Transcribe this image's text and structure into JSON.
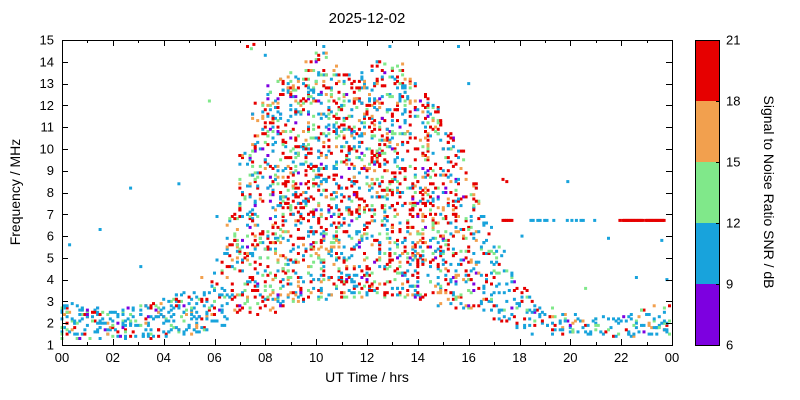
{
  "chart_data": {
    "type": "scatter",
    "title": "2025-12-02",
    "xlabel": "UT Time / hrs",
    "ylabel": "Frequency / MHz",
    "xlim": [
      0,
      24
    ],
    "ylim": [
      1,
      15
    ],
    "grid": false,
    "x_ticks": [
      {
        "v": 0,
        "l": "00"
      },
      {
        "v": 2,
        "l": "02"
      },
      {
        "v": 4,
        "l": "04"
      },
      {
        "v": 6,
        "l": "06"
      },
      {
        "v": 8,
        "l": "08"
      },
      {
        "v": 10,
        "l": "10"
      },
      {
        "v": 12,
        "l": "12"
      },
      {
        "v": 14,
        "l": "14"
      },
      {
        "v": 16,
        "l": "16"
      },
      {
        "v": 18,
        "l": "18"
      },
      {
        "v": 20,
        "l": "20"
      },
      {
        "v": 22,
        "l": "22"
      },
      {
        "v": 24,
        "l": "00"
      }
    ],
    "y_ticks": [
      1,
      2,
      3,
      4,
      5,
      6,
      7,
      8,
      9,
      10,
      11,
      12,
      13,
      14,
      15
    ],
    "colorbar": {
      "label": "Signal to Noise Ratio SNR / dB",
      "min": 6,
      "max": 21,
      "ticks": [
        6,
        9,
        12,
        15,
        18,
        21
      ],
      "bands": [
        {
          "range": [
            6,
            9
          ],
          "color": "#7d00e0"
        },
        {
          "range": [
            9,
            12
          ],
          "color": "#18a3dc"
        },
        {
          "range": [
            12,
            15
          ],
          "color": "#80e88a"
        },
        {
          "range": [
            15,
            18
          ],
          "color": "#f2a04e"
        },
        {
          "range": [
            18,
            21
          ],
          "color": "#e60000"
        }
      ]
    },
    "description": "Ionospheric sounding SNR vs UT time and frequency: low frequencies (1-3 MHz) at night, dense cloud rising to 14.5 MHz between 07 and 16 UT, collapse after 16 UT, fixed-frequency trace at 6.7 MHz in the evening.",
    "generation": {
      "seed": 7,
      "point_size": 3,
      "t_step": 0.1,
      "f_quant": 0.1,
      "day_range": [
        6.6,
        16.4
      ],
      "palette": {
        "p": "#7d00e0",
        "b": "#18a3dc",
        "g": "#80e88a",
        "o": "#f2a04e",
        "r": "#e60000"
      },
      "weights_day": [
        [
          "b",
          0.3
        ],
        [
          "g",
          0.2
        ],
        [
          "o",
          0.14
        ],
        [
          "r",
          0.31
        ],
        [
          "p",
          0.05
        ]
      ],
      "weights_night": [
        [
          "b",
          0.6
        ],
        [
          "g",
          0.16
        ],
        [
          "r",
          0.13
        ],
        [
          "o",
          0.06
        ],
        [
          "p",
          0.05
        ]
      ],
      "red_core": {
        "fmin": 6.5,
        "fmax": 11.0,
        "boost": 0.2
      },
      "envelope": [
        [
          0.0,
          1.3,
          2.9,
          26
        ],
        [
          0.5,
          1.3,
          2.8,
          24
        ],
        [
          1.0,
          1.3,
          2.7,
          22
        ],
        [
          1.5,
          1.3,
          2.6,
          20
        ],
        [
          2.0,
          1.3,
          2.6,
          20
        ],
        [
          2.5,
          1.3,
          2.8,
          21
        ],
        [
          3.0,
          1.3,
          2.9,
          22
        ],
        [
          3.5,
          1.3,
          3.0,
          23
        ],
        [
          4.0,
          1.4,
          3.2,
          26
        ],
        [
          4.5,
          1.5,
          3.4,
          28
        ],
        [
          5.0,
          1.5,
          3.5,
          28
        ],
        [
          5.5,
          1.6,
          4.2,
          26
        ],
        [
          6.0,
          1.8,
          5.2,
          32
        ],
        [
          6.5,
          2.0,
          7.0,
          48
        ],
        [
          7.0,
          2.2,
          9.8,
          75
        ],
        [
          7.5,
          2.4,
          12.2,
          95
        ],
        [
          8.0,
          2.5,
          13.0,
          115
        ],
        [
          8.5,
          2.8,
          13.3,
          125
        ],
        [
          9.0,
          3.0,
          13.6,
          132
        ],
        [
          9.5,
          3.0,
          14.0,
          134
        ],
        [
          10.0,
          3.0,
          14.5,
          136
        ],
        [
          10.5,
          3.2,
          13.9,
          130
        ],
        [
          11.0,
          3.2,
          13.4,
          126
        ],
        [
          11.5,
          3.2,
          13.6,
          126
        ],
        [
          12.0,
          3.2,
          14.0,
          130
        ],
        [
          12.5,
          3.2,
          14.2,
          131
        ],
        [
          13.0,
          3.2,
          13.9,
          130
        ],
        [
          13.5,
          3.0,
          13.3,
          122
        ],
        [
          14.0,
          3.0,
          12.6,
          112
        ],
        [
          14.5,
          2.8,
          12.0,
          100
        ],
        [
          15.0,
          2.8,
          11.0,
          86
        ],
        [
          15.5,
          2.6,
          10.0,
          70
        ],
        [
          16.0,
          2.4,
          8.6,
          56
        ],
        [
          16.5,
          2.2,
          7.0,
          42
        ],
        [
          17.0,
          2.0,
          5.6,
          30
        ],
        [
          17.5,
          1.8,
          4.6,
          23
        ],
        [
          18.0,
          1.6,
          3.6,
          18
        ],
        [
          18.5,
          1.5,
          3.0,
          15
        ],
        [
          19.0,
          1.5,
          2.8,
          14
        ],
        [
          19.5,
          1.4,
          2.6,
          12
        ],
        [
          20.0,
          1.4,
          2.5,
          12
        ],
        [
          20.5,
          1.4,
          2.4,
          10
        ],
        [
          21.0,
          1.4,
          2.4,
          10
        ],
        [
          21.5,
          1.4,
          2.4,
          10
        ],
        [
          22.0,
          1.4,
          2.5,
          12
        ],
        [
          22.5,
          1.4,
          2.6,
          14
        ],
        [
          23.0,
          1.4,
          2.8,
          16
        ],
        [
          23.5,
          1.4,
          2.9,
          18
        ]
      ],
      "outliers": [
        [
          0.3,
          5.6,
          "b"
        ],
        [
          1.5,
          6.3,
          "b"
        ],
        [
          2.7,
          8.2,
          "b"
        ],
        [
          3.1,
          4.6,
          "b"
        ],
        [
          4.6,
          8.4,
          "b"
        ],
        [
          5.8,
          12.2,
          "g"
        ],
        [
          6.1,
          6.9,
          "b"
        ],
        [
          7.3,
          14.7,
          "r"
        ],
        [
          7.45,
          14.6,
          "g"
        ],
        [
          7.55,
          14.8,
          "r"
        ],
        [
          8.0,
          14.3,
          "b"
        ],
        [
          10.3,
          14.7,
          "b"
        ],
        [
          12.9,
          14.7,
          "b"
        ],
        [
          15.6,
          14.7,
          "b"
        ],
        [
          16.0,
          13.0,
          "b"
        ],
        [
          17.35,
          8.6,
          "r"
        ],
        [
          17.5,
          8.5,
          "r"
        ],
        [
          18.1,
          6.0,
          "b"
        ],
        [
          19.9,
          8.5,
          "b"
        ],
        [
          21.5,
          5.9,
          "b"
        ],
        [
          23.6,
          5.8,
          "b"
        ],
        [
          22.6,
          4.1,
          "b"
        ],
        [
          20.6,
          3.6,
          "g"
        ],
        [
          23.8,
          4.0,
          "b"
        ]
      ],
      "snr_lines": [
        {
          "f": 6.72,
          "t0": 17.35,
          "t1": 17.75,
          "c": "r",
          "p": 0.9,
          "step": 0.07
        },
        {
          "f": 6.72,
          "t0": 18.45,
          "t1": 19.35,
          "c": "b",
          "p": 0.55,
          "step": 0.09
        },
        {
          "f": 6.72,
          "t0": 19.7,
          "t1": 21.3,
          "c": "b",
          "p": 0.4,
          "step": 0.09
        },
        {
          "f": 6.72,
          "t0": 21.95,
          "t1": 23.7,
          "c": "r",
          "p": 0.92,
          "step": 0.06
        }
      ]
    }
  }
}
